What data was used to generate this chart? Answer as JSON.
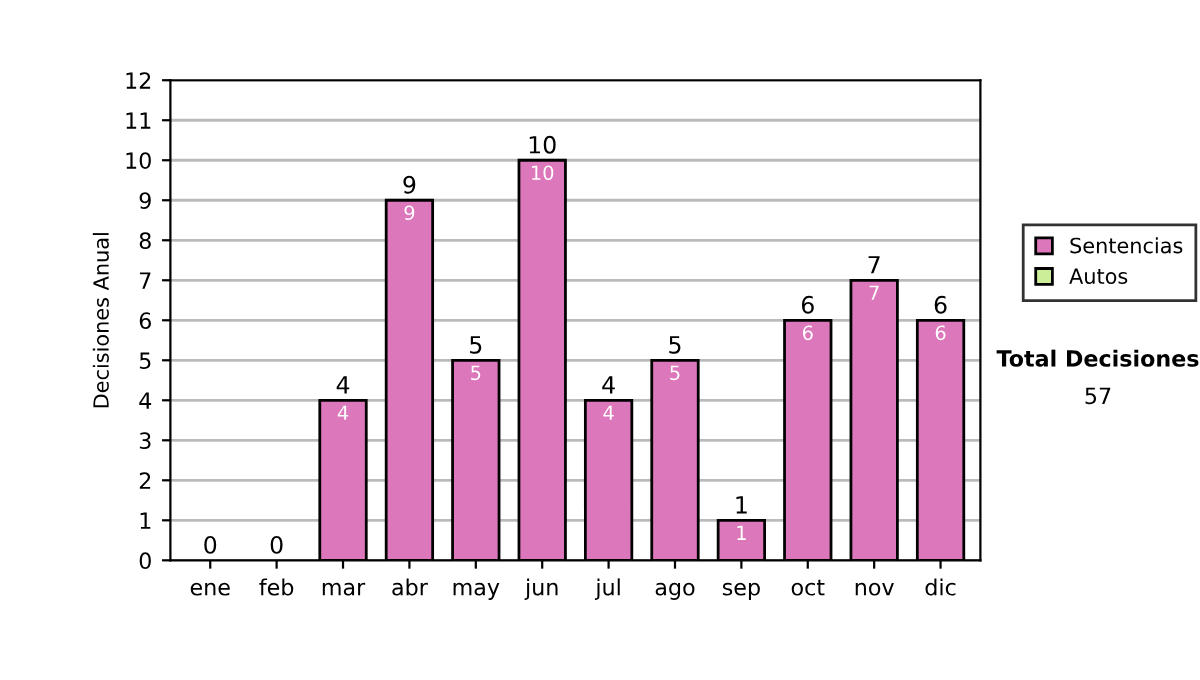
{
  "chart_data": {
    "type": "bar",
    "ylabel": "Decisiones Anual",
    "categories": [
      "ene",
      "feb",
      "mar",
      "abr",
      "may",
      "jun",
      "jul",
      "ago",
      "sep",
      "oct",
      "nov",
      "dic"
    ],
    "stacked": true,
    "series": [
      {
        "name": "Sentencias",
        "color": "#dd77bb",
        "values": [
          0,
          0,
          4,
          9,
          5,
          10,
          4,
          5,
          1,
          6,
          7,
          6
        ],
        "value_labels": [
          null,
          null,
          "4",
          "9",
          "5",
          "10",
          "4",
          "5",
          "1",
          "6",
          "7",
          "6"
        ]
      },
      {
        "name": "Autos",
        "color": "#ccee99",
        "values": [
          0,
          0,
          0,
          0,
          0,
          0,
          0,
          0,
          0,
          0,
          0,
          0
        ]
      }
    ],
    "totals": [
      "0",
      "0",
      "4",
      "9",
      "5",
      "10",
      "4",
      "5",
      "1",
      "6",
      "7",
      "6"
    ],
    "ylim": [
      0,
      12
    ],
    "yticks": [
      0,
      1,
      2,
      3,
      4,
      5,
      6,
      7,
      8,
      9,
      10,
      11,
      12
    ],
    "grid": "y",
    "legend": "right",
    "annotations": [
      "Total Decisiones",
      "57"
    ]
  }
}
